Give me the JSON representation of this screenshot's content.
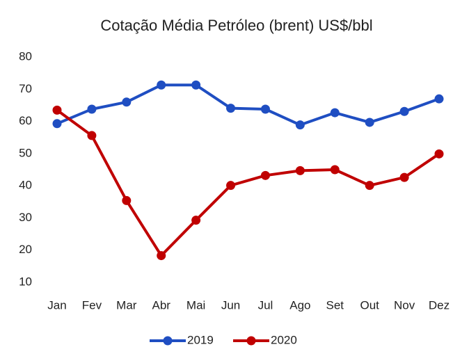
{
  "chart_data": {
    "type": "line",
    "title": "Cotação Média Petróleo (brent)  US$/bbl",
    "categories": [
      "Jan",
      "Fev",
      "Mar",
      "Abr",
      "Mai",
      "Jun",
      "Jul",
      "Ago",
      "Set",
      "Out",
      "Nov",
      "Dez"
    ],
    "series": [
      {
        "name": "2019",
        "color": "#1f4ec2",
        "values": [
          59.3,
          63.8,
          66.0,
          71.3,
          71.3,
          64.1,
          63.8,
          58.9,
          62.7,
          59.7,
          63.1,
          67.0
        ]
      },
      {
        "name": "2020",
        "color": "#c00000",
        "values": [
          63.5,
          55.6,
          35.4,
          18.3,
          29.3,
          40.1,
          43.2,
          44.7,
          45.0,
          40.1,
          42.6,
          49.9
        ]
      }
    ],
    "ylim": [
      10,
      80
    ],
    "yticks": [
      10,
      20,
      30,
      40,
      50,
      60,
      70,
      80
    ],
    "grid": false,
    "legend": "bottom"
  }
}
